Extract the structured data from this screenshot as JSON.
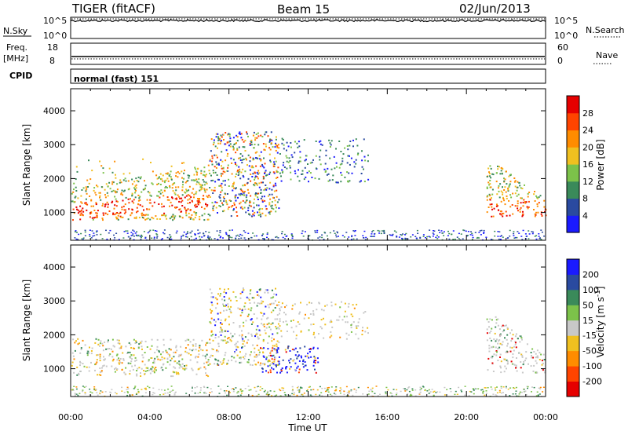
{
  "header": {
    "radar": "TIGER (fitACF)",
    "beam": "Beam 15",
    "date": "02/Jun/2013"
  },
  "strips": {
    "nsky_label": "N.Sky",
    "nsky_tick_high": "10^5",
    "nsky_tick_low": "10^0",
    "nsearch_label": "N.Search",
    "nsearch_tick_high": "10^5",
    "nsearch_tick_low": "10^0",
    "freq_label_line1": "Freq.",
    "freq_label_line2": "[MHz]",
    "freq_tick_high": "18",
    "freq_tick_low": "8",
    "nave_label": "Nave",
    "nave_tick_high": "60",
    "nave_tick_low": "0",
    "cpid_label": "CPID",
    "cpid_value": "normal (fast) 151"
  },
  "chart_data": [
    {
      "type": "heatmap",
      "title": "",
      "ylabel": "Slant Range [km]",
      "xlabel": "",
      "xlim": [
        "00:00",
        "24:00"
      ],
      "ylim": [
        180,
        4650
      ],
      "y_ticks": [
        "1000",
        "2000",
        "3000",
        "4000"
      ],
      "colorbar_label": "Power [dB]",
      "colorbar_ticks": [
        "4",
        "8",
        "12",
        "16",
        "20",
        "24",
        "28"
      ],
      "colorbar_colors": [
        "#1a1aff",
        "#2a4aa0",
        "#3a8a5a",
        "#7cc24a",
        "#f0c020",
        "#ff8c00",
        "#ff4400",
        "#e60000"
      ],
      "regions": [
        {
          "t0": 0.0,
          "t1": 7.0,
          "r0": 800,
          "r1": 2600,
          "level": "high"
        },
        {
          "t0": 7.0,
          "t1": 10.5,
          "r0": 900,
          "r1": 3400,
          "level": "mixed"
        },
        {
          "t0": 10.5,
          "t1": 15.0,
          "r0": 1900,
          "r1": 3200,
          "level": "low"
        },
        {
          "t0": 21.0,
          "t1": 24.0,
          "r0": 900,
          "r1": 2800,
          "level": "high"
        }
      ]
    },
    {
      "type": "heatmap",
      "title": "",
      "ylabel": "Slant Range [km]",
      "xlabel": "Time UT",
      "xlim": [
        "00:00",
        "24:00"
      ],
      "ylim": [
        180,
        4650
      ],
      "x_ticks": [
        "00:00",
        "04:00",
        "08:00",
        "12:00",
        "16:00",
        "20:00",
        "00:00"
      ],
      "y_ticks": [
        "1000",
        "2000",
        "3000",
        "4000"
      ],
      "colorbar_label": "Velocity [m s^-1]",
      "colorbar_ticks": [
        "200",
        "100",
        "50",
        "15",
        "-15",
        "-50",
        "-100",
        "-200"
      ],
      "colorbar_colors": [
        "#1a1aff",
        "#2a4aa0",
        "#3a8a5a",
        "#7cc24a",
        "#c8c8c8",
        "#f0c020",
        "#ff8c00",
        "#ff4400",
        "#e60000"
      ]
    }
  ]
}
